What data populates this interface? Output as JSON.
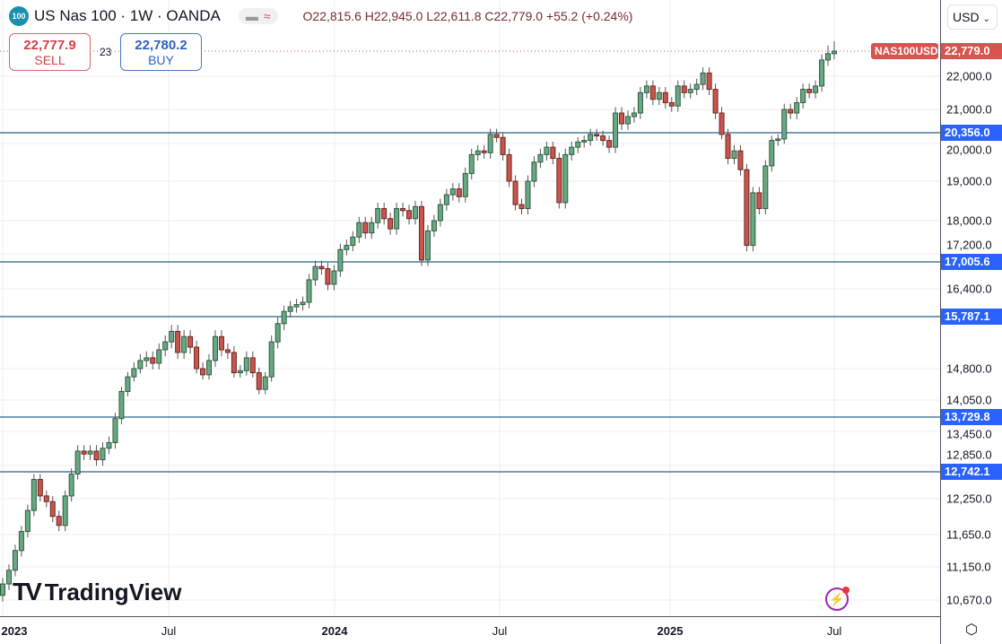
{
  "header": {
    "logo_text": "100",
    "title": "US Nas 100 · 1W · OANDA",
    "ohlc": "O22,815.6 H22,945.0 L22,611.8 C22,779.0 +55.2 (+0.24%)"
  },
  "trade": {
    "sell_price": "22,777.9",
    "sell_label": "SELL",
    "spread": "23",
    "buy_price": "22,780.2",
    "buy_label": "BUY"
  },
  "currency": "USD",
  "symbol_tag": "NAS100USD",
  "watermark": "TradingView",
  "colors": {
    "up": "#6aa783",
    "down": "#c8564c",
    "level_line": "#2b5f8a",
    "level_label": "#2962ff",
    "last_price": "#d9534f"
  },
  "chart_data": {
    "type": "candlestick",
    "timeframe": "1W",
    "y_scale": "log",
    "grid": true,
    "x_ticks": [
      "2023",
      "Jul",
      "2024",
      "Jul",
      "2025",
      "Jul"
    ],
    "y_ticks": [
      "22,000.0",
      "21,000.0",
      "20,000.0",
      "19,000.0",
      "18,000.0",
      "17,200.0",
      "16,400.0",
      "14,800.0",
      "14,050.0",
      "13,450.0",
      "12,850.0",
      "12,250.0",
      "11,650.0",
      "11,150.0",
      "10,670.0"
    ],
    "last_price": "22,779.0",
    "levels": [
      "20,356.0",
      "17,005.6",
      "15,787.1",
      "13,729.8",
      "12,742.1"
    ],
    "closes": [
      10900,
      11100,
      11400,
      11700,
      12050,
      12600,
      12300,
      12200,
      11950,
      11800,
      12300,
      12700,
      13100,
      13050,
      13100,
      12950,
      13150,
      13250,
      13700,
      14250,
      14600,
      14800,
      14950,
      15000,
      14900,
      15150,
      15300,
      15500,
      15100,
      15400,
      15200,
      14800,
      14650,
      14950,
      15400,
      15150,
      15100,
      14700,
      14750,
      15000,
      14700,
      14300,
      14600,
      15300,
      15650,
      15900,
      16000,
      16050,
      16100,
      16600,
      16900,
      16850,
      16500,
      16800,
      17300,
      17400,
      17600,
      17950,
      17700,
      17950,
      18300,
      18050,
      17800,
      18300,
      18250,
      18050,
      18350,
      17050,
      17750,
      18000,
      18400,
      18650,
      18800,
      18600,
      19200,
      19700,
      19800,
      19750,
      20300,
      20200,
      19700,
      19000,
      18400,
      18300,
      19000,
      19500,
      19700,
      19900,
      19600,
      18450,
      19700,
      19900,
      20050,
      20100,
      20300,
      20250,
      20100,
      19900,
      20900,
      20600,
      20800,
      20900,
      21500,
      21700,
      21300,
      21500,
      21200,
      21100,
      21700,
      21500,
      21600,
      21750,
      22100,
      21600,
      20900,
      20300,
      19600,
      19800,
      19300,
      17400,
      18700,
      18300,
      19400,
      20100,
      20150,
      21000,
      20900,
      21200,
      21600,
      21500,
      21700,
      22500,
      22700,
      22779
    ]
  }
}
